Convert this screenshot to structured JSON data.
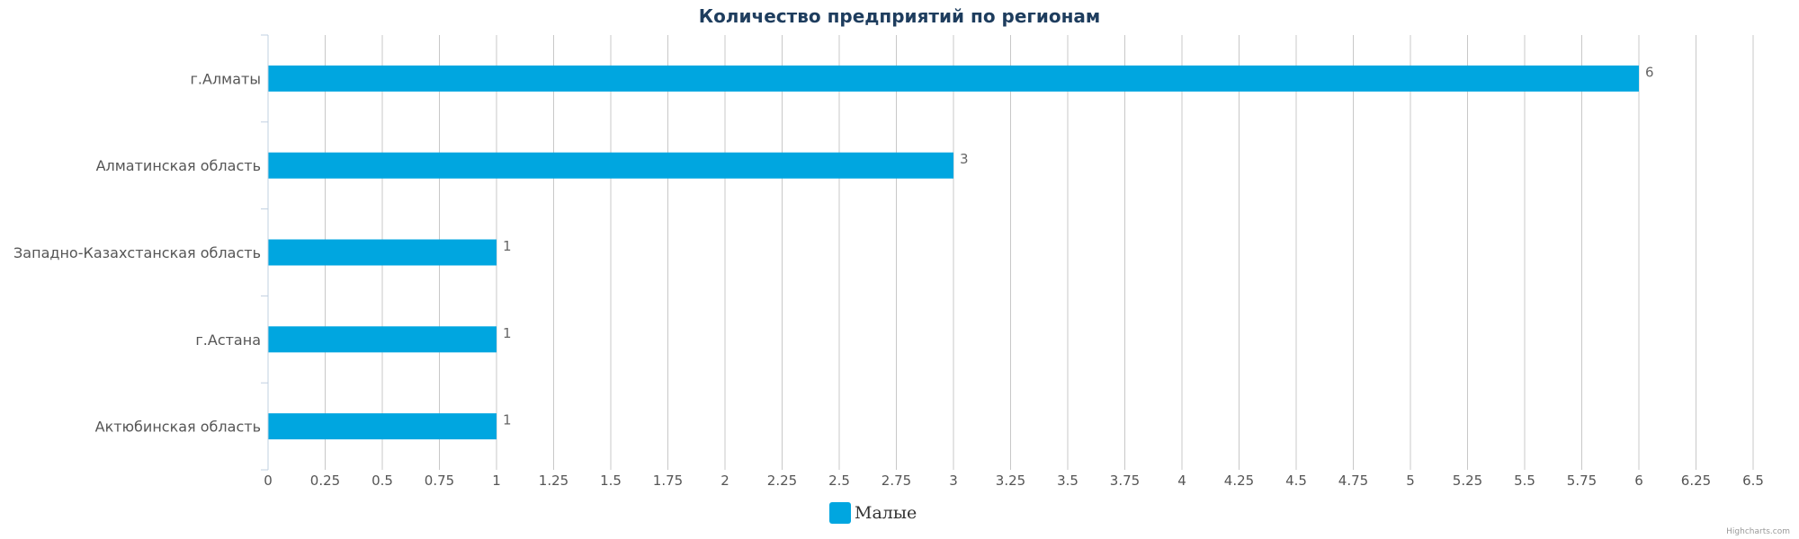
{
  "chart_data": {
    "type": "bar",
    "orientation": "horizontal",
    "title": "Количество предприятий по регионам",
    "categories": [
      "г.Алматы",
      "Алматинская область",
      "Западно-Казахстанская область",
      "г.Астана",
      "Актюбинская область"
    ],
    "series": [
      {
        "name": "Малые",
        "values": [
          6,
          3,
          1,
          1,
          1
        ],
        "color": "#00a6e0"
      }
    ],
    "xlim": [
      0,
      6.5
    ],
    "tick_step": 0.25,
    "grid": true,
    "data_labels": true,
    "legend_position": "bottom-center"
  },
  "credits": "Highcharts.com",
  "colors": {
    "title": "#1e3d5e",
    "text": "#555555",
    "grid": "#c8c8c8",
    "axis": "#c0d0e0",
    "data_label": "#666666",
    "credits": "#999999"
  }
}
